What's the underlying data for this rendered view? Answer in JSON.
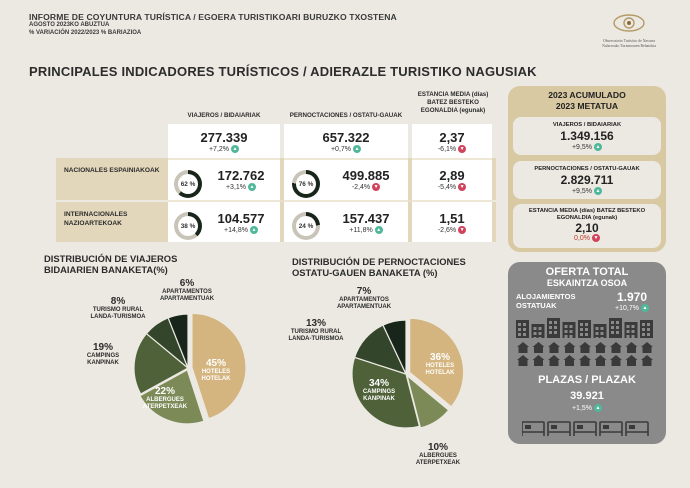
{
  "header": {
    "line1": "INFORME DE COYUNTURA TURÍSTICA / EGOERA TURISTIKOARI BURUZKO TXOSTENA",
    "line2": "AGOSTO 2023KO ABUZTUA",
    "line3": "% VARIACIÓN 2022/2023 % BARIAZIOA",
    "logo_text_1": "Observatorio Turístico de Navarra",
    "logo_text_2": "Nafarroako Turismoaren Behatokia"
  },
  "main_title": "PRINCIPALES INDICADORES TURÍSTICOS / ADIERAZLE TURISTIKO NAGUSIAK",
  "table": {
    "columns": [
      "VIAJEROS / BIDAIARIAK",
      "PERNOCTACIONES / OSTATU-GAUAK",
      "ESTANCIA MEDIA (días) BATEZ BESTEKO EGONALDIA (egunak)"
    ],
    "total": {
      "viajeros": "277.339",
      "viajeros_var": "+7,2%",
      "pernoct": "657.322",
      "pernoct_var": "+0,7%",
      "estancia": "2,37",
      "estancia_var": "-6,1%"
    },
    "rows": [
      {
        "label": "NACIONALES ESPAINIAKOAK",
        "viajeros_share": "62 %",
        "viajeros_share_num": 62,
        "viajeros": "172.762",
        "viajeros_var": "+3,1%",
        "pernoct_share": "76 %",
        "pernoct_share_num": 76,
        "pernoct": "499.885",
        "pernoct_var": "-2,4%",
        "estancia": "2,89",
        "estancia_var": "-5,4%"
      },
      {
        "label": "INTERNACIONALES NAZIOARTEKOAK",
        "viajeros_share": "38 %",
        "viajeros_share_num": 38,
        "viajeros": "104.577",
        "viajeros_var": "+14,8%",
        "pernoct_share": "24 %",
        "pernoct_share_num": 24,
        "pernoct": "157.437",
        "pernoct_var": "+11,8%",
        "estancia": "1,51",
        "estancia_var": "-2,6%"
      }
    ]
  },
  "accumulated": {
    "title_1": "2023 ACUMULADO",
    "title_2": "2023 METATUA",
    "viajeros_label": "VIAJEROS / BIDAIARIAK",
    "viajeros": "1.349.156",
    "viajeros_var": "+9,5%",
    "pernoct_label": "PERNOCTACIONES / OSTATU-GAUAK",
    "pernoct": "2.829.711",
    "pernoct_var": "+9,5%",
    "estancia_label": "ESTANCIA MEDIA (días) BATEZ BESTEKO EGONALDIA (egunak)",
    "estancia": "2,10",
    "estancia_var": "0,0%"
  },
  "offer": {
    "title_1": "OFERTA TOTAL",
    "title_2": "ESKAINTZA OSOA",
    "aloj_label_1": "ALOJAMIENTOS",
    "aloj_label_2": "OSTATUAK",
    "aloj_value": "1.970",
    "aloj_var": "+10,7%",
    "plazas_label": "PLAZAS / PLAZAK",
    "plazas_value": "39.921",
    "plazas_var": "+1,5%"
  },
  "colors": {
    "hoteles": "#d4b47f",
    "albergues": "#7c8a58",
    "campings": "#4e6138",
    "turismo_rural": "#33452a",
    "apartamentos": "#18251a",
    "up": "#4fb89a",
    "down": "#d1435a"
  },
  "chart_data": [
    {
      "type": "pie",
      "title": "DISTRIBUCIÓN DE VIAJEROS BIDAIARIEN BANAKETA(%)",
      "series": [
        {
          "name": "HOTELES HOTELAK",
          "value": 45
        },
        {
          "name": "ALBERGUES ATERPETXEAK",
          "value": 22
        },
        {
          "name": "CAMPINGS KANPINAK",
          "value": 19
        },
        {
          "name": "TURISMO RURAL LANDA-TURISMOA",
          "value": 8
        },
        {
          "name": "APARTAMENTOS APARTAMENTUAK",
          "value": 6
        }
      ]
    },
    {
      "type": "pie",
      "title": "DISTRIBUCIÓN DE PERNOCTACIONES OSTATU-GAUEN BANAKETA (%)",
      "series": [
        {
          "name": "HOTELES HOTELAK",
          "value": 36
        },
        {
          "name": "ALBERGUES ATERPETXEAK",
          "value": 10
        },
        {
          "name": "CAMPINGS KANPINAK",
          "value": 34
        },
        {
          "name": "TURISMO RURAL LANDA-TURISMOA",
          "value": 13
        },
        {
          "name": "APARTAMENTOS APARTAMENTUAK",
          "value": 7
        }
      ]
    }
  ],
  "pies": {
    "p1": {
      "title_1": "DISTRIBUCIÓN DE VIAJEROS",
      "title_2": "BIDAIARIEN BANAKETA(%)",
      "hot_pct": "45%",
      "hot_1": "HOTELES",
      "hot_2": "HOTELAK",
      "alb_pct": "22%",
      "alb_1": "ALBERGUES",
      "alb_2": "ATERPETXEAK",
      "cam_pct": "19%",
      "cam_1": "CAMPINGS",
      "cam_2": "KANPINAK",
      "tur_pct": "8%",
      "tur_1": "TURISMO RURAL",
      "tur_2": "LANDA-TURISMOA",
      "apa_pct": "6%",
      "apa_1": "APARTAMENTOS",
      "apa_2": "APARTAMENTUAK"
    },
    "p2": {
      "title_1": "DISTRIBUCIÓN DE PERNOCTACIONES",
      "title_2": "OSTATU-GAUEN BANAKETA (%)",
      "hot_pct": "36%",
      "hot_1": "HOTELES",
      "hot_2": "HOTELAK",
      "alb_pct": "10%",
      "alb_1": "ALBERGUES",
      "alb_2": "ATERPETXEAK",
      "cam_pct": "34%",
      "cam_1": "CAMPINGS",
      "cam_2": "KANPINAK",
      "tur_pct": "13%",
      "tur_1": "TURISMO RURAL",
      "tur_2": "LANDA-TURISMOA",
      "apa_pct": "7%",
      "apa_1": "APARTAMENTOS",
      "apa_2": "APARTAMENTUAK"
    }
  }
}
